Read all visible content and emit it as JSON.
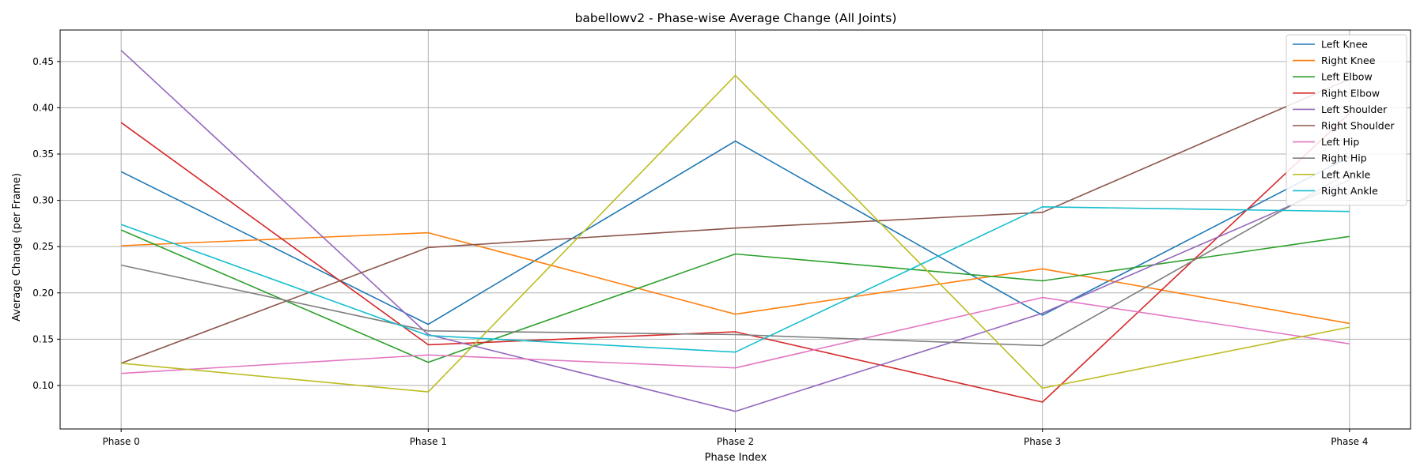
{
  "chart_data": {
    "type": "line",
    "title": "babellowv2 - Phase-wise Average Change (All Joints)",
    "xlabel": "Phase Index",
    "ylabel": "Average Change (per Frame)",
    "categories": [
      "Phase 0",
      "Phase 1",
      "Phase 2",
      "Phase 3",
      "Phase 4"
    ],
    "ylim": [
      0.053,
      0.484
    ],
    "yticks": [
      "0.10",
      "0.15",
      "0.20",
      "0.25",
      "0.30",
      "0.35",
      "0.40",
      "0.45"
    ],
    "grid": true,
    "legend_position": "top-right",
    "series": [
      {
        "name": "Left Knee",
        "color": "#1f77b4",
        "values": [
          0.331,
          0.166,
          0.364,
          0.176,
          0.347
        ]
      },
      {
        "name": "Right Knee",
        "color": "#ff7f0e",
        "values": [
          0.251,
          0.265,
          0.177,
          0.226,
          0.167
        ]
      },
      {
        "name": "Left Elbow",
        "color": "#2ca02c",
        "values": [
          0.268,
          0.125,
          0.242,
          0.213,
          0.261
        ]
      },
      {
        "name": "Right Elbow",
        "color": "#d62728",
        "values": [
          0.384,
          0.144,
          0.158,
          0.082,
          0.394
        ]
      },
      {
        "name": "Left Shoulder",
        "color": "#9467bd",
        "values": [
          0.462,
          0.155,
          0.072,
          0.178,
          0.322
        ]
      },
      {
        "name": "Right Shoulder",
        "color": "#8c564b",
        "values": [
          0.124,
          0.249,
          0.27,
          0.287,
          0.431
        ]
      },
      {
        "name": "Left Hip",
        "color": "#e377c2",
        "values": [
          0.113,
          0.133,
          0.119,
          0.195,
          0.145
        ]
      },
      {
        "name": "Right Hip",
        "color": "#7f7f7f",
        "values": [
          0.23,
          0.159,
          0.155,
          0.143,
          0.33
        ]
      },
      {
        "name": "Left Ankle",
        "color": "#bcbd22",
        "values": [
          0.124,
          0.093,
          0.435,
          0.097,
          0.163
        ]
      },
      {
        "name": "Right Ankle",
        "color": "#17becf",
        "values": [
          0.274,
          0.154,
          0.136,
          0.293,
          0.288
        ]
      }
    ]
  }
}
